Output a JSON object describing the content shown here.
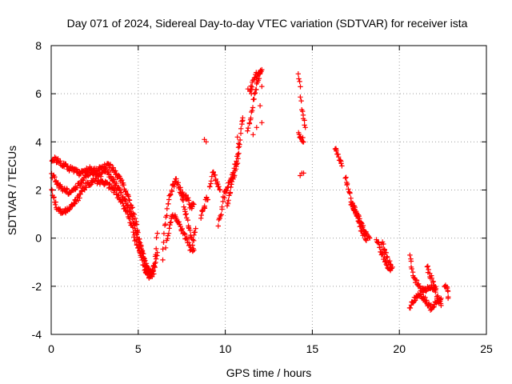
{
  "chart_data": {
    "type": "scatter",
    "title": "Day 071 of 2024, Sidereal Day-to-day VTEC variation (SDTVAR) for receiver ista",
    "xlabel": "GPS time / hours",
    "ylabel": "SDTVAR / TECUs",
    "xlim": [
      0,
      25
    ],
    "ylim": [
      -4,
      8
    ],
    "xticks": [
      "0",
      "5",
      "10",
      "15",
      "20",
      "25"
    ],
    "yticks": [
      "-4",
      "-2",
      "0",
      "2",
      "4",
      "6",
      "8"
    ],
    "grid": true,
    "marker": "+",
    "color": "#ff0000",
    "trace_knots": [
      {
        "name": "track-a",
        "points": [
          [
            0.0,
            3.3
          ],
          [
            0.4,
            3.2
          ],
          [
            1.0,
            2.9
          ],
          [
            1.6,
            2.7
          ],
          [
            2.2,
            2.9
          ],
          [
            2.8,
            2.6
          ],
          [
            3.2,
            3.1
          ],
          [
            3.6,
            2.8
          ],
          [
            4.0,
            2.4
          ],
          [
            4.4,
            1.8
          ],
          [
            4.8,
            0.8
          ],
          [
            5.1,
            -0.2
          ],
          [
            5.4,
            -1.0
          ],
          [
            5.7,
            -1.5
          ],
          [
            5.9,
            -1.2
          ],
          [
            6.0,
            -0.6
          ],
          [
            6.1,
            0.2
          ]
        ]
      },
      {
        "name": "track-b",
        "points": [
          [
            0.0,
            2.7
          ],
          [
            0.4,
            2.2
          ],
          [
            1.0,
            1.9
          ],
          [
            1.6,
            2.2
          ],
          [
            2.0,
            2.6
          ],
          [
            2.5,
            2.8
          ],
          [
            3.0,
            2.9
          ],
          [
            3.5,
            2.5
          ],
          [
            4.0,
            1.9
          ],
          [
            4.5,
            1.2
          ],
          [
            5.0,
            0.0
          ],
          [
            5.3,
            -0.9
          ],
          [
            5.6,
            -1.6
          ],
          [
            5.9,
            -1.4
          ],
          [
            6.1,
            -0.6
          ]
        ]
      },
      {
        "name": "track-c",
        "points": [
          [
            0.0,
            2.1
          ],
          [
            0.3,
            1.3
          ],
          [
            0.6,
            1.0
          ],
          [
            1.0,
            1.2
          ],
          [
            1.5,
            1.6
          ],
          [
            2.0,
            2.2
          ],
          [
            2.5,
            2.4
          ],
          [
            3.0,
            2.3
          ],
          [
            3.5,
            2.1
          ],
          [
            4.0,
            1.6
          ],
          [
            4.5,
            0.8
          ],
          [
            5.0,
            -0.5
          ],
          [
            5.4,
            -1.3
          ],
          [
            5.8,
            -1.6
          ]
        ]
      },
      {
        "name": "track-d",
        "points": [
          [
            6.4,
            -0.8
          ],
          [
            6.5,
            0.3
          ],
          [
            6.7,
            1.4
          ],
          [
            6.9,
            2.0
          ],
          [
            7.2,
            2.4
          ],
          [
            7.5,
            1.8
          ],
          [
            7.8,
            0.8
          ],
          [
            8.1,
            -0.2
          ],
          [
            8.3,
            0.4
          ]
        ]
      },
      {
        "name": "track-e",
        "points": [
          [
            6.6,
            -0.3
          ],
          [
            6.8,
            0.5
          ],
          [
            7.0,
            1.0
          ],
          [
            7.3,
            0.7
          ],
          [
            7.6,
            0.2
          ],
          [
            8.0,
            -0.4
          ],
          [
            8.2,
            -0.5
          ]
        ]
      },
      {
        "name": "track-f",
        "points": [
          [
            7.4,
            1.9
          ],
          [
            7.8,
            1.7
          ],
          [
            8.0,
            1.3
          ],
          [
            8.2,
            1.4
          ]
        ]
      },
      {
        "name": "track-g",
        "points": [
          [
            8.6,
            0.9
          ],
          [
            8.8,
            1.3
          ],
          [
            8.9,
            1.7
          ],
          [
            9.0,
            1.6
          ]
        ]
      },
      {
        "name": "track-h",
        "points": [
          [
            9.1,
            2.1
          ],
          [
            9.3,
            2.8
          ],
          [
            9.5,
            2.3
          ],
          [
            9.7,
            2.0
          ]
        ]
      },
      {
        "name": "track-i",
        "points": [
          [
            9.6,
            0.6
          ],
          [
            9.8,
            1.1
          ],
          [
            9.9,
            1.7
          ],
          [
            10.2,
            2.2
          ],
          [
            10.5,
            2.8
          ],
          [
            10.7,
            3.5
          ],
          [
            10.9,
            4.5
          ],
          [
            11.0,
            4.9
          ]
        ]
      },
      {
        "name": "track-j",
        "points": [
          [
            10.1,
            1.4
          ],
          [
            10.3,
            1.9
          ],
          [
            10.5,
            2.6
          ],
          [
            10.7,
            3.2
          ],
          [
            10.8,
            3.8
          ]
        ]
      },
      {
        "name": "track-k",
        "points": [
          [
            11.3,
            4.4
          ],
          [
            11.5,
            5.2
          ],
          [
            11.6,
            5.7
          ],
          [
            11.8,
            6.4
          ],
          [
            12.0,
            6.9
          ],
          [
            12.1,
            7.0
          ]
        ]
      },
      {
        "name": "track-l",
        "points": [
          [
            11.4,
            6.0
          ],
          [
            11.6,
            6.5
          ],
          [
            11.8,
            6.8
          ],
          [
            12.0,
            6.9
          ]
        ]
      },
      {
        "name": "track-m",
        "points": [
          [
            14.2,
            6.9
          ],
          [
            14.3,
            6.2
          ],
          [
            14.4,
            5.3
          ],
          [
            14.5,
            5.0
          ],
          [
            14.6,
            4.6
          ]
        ]
      },
      {
        "name": "track-n",
        "points": [
          [
            14.2,
            4.3
          ],
          [
            14.4,
            4.1
          ],
          [
            14.5,
            4.0
          ]
        ]
      },
      {
        "name": "track-o",
        "points": [
          [
            16.3,
            3.7
          ],
          [
            16.5,
            3.4
          ],
          [
            16.7,
            3.0
          ]
        ]
      },
      {
        "name": "track-p",
        "points": [
          [
            16.9,
            2.6
          ],
          [
            17.1,
            2.0
          ],
          [
            17.3,
            1.4
          ],
          [
            17.5,
            1.0
          ],
          [
            17.7,
            0.6
          ],
          [
            17.9,
            0.2
          ],
          [
            18.1,
            -0.1
          ]
        ]
      },
      {
        "name": "track-q",
        "points": [
          [
            17.2,
            1.5
          ],
          [
            17.5,
            1.1
          ],
          [
            17.8,
            0.6
          ],
          [
            18.1,
            0.2
          ],
          [
            18.3,
            0.0
          ]
        ]
      },
      {
        "name": "track-r",
        "points": [
          [
            18.7,
            -0.1
          ],
          [
            18.9,
            -0.4
          ],
          [
            19.1,
            -0.8
          ],
          [
            19.3,
            -1.1
          ],
          [
            19.5,
            -1.3
          ]
        ]
      },
      {
        "name": "track-s",
        "points": [
          [
            19.0,
            -0.2
          ],
          [
            19.2,
            -0.6
          ],
          [
            19.4,
            -1.0
          ],
          [
            19.6,
            -1.2
          ]
        ]
      },
      {
        "name": "track-t",
        "points": [
          [
            20.6,
            -0.7
          ],
          [
            20.7,
            -1.2
          ],
          [
            20.9,
            -1.7
          ],
          [
            21.1,
            -2.0
          ],
          [
            21.4,
            -2.2
          ],
          [
            21.8,
            -2.0
          ],
          [
            22.1,
            -2.1
          ]
        ]
      },
      {
        "name": "track-u",
        "points": [
          [
            20.6,
            -2.9
          ],
          [
            20.9,
            -2.5
          ],
          [
            21.2,
            -2.3
          ],
          [
            21.5,
            -2.6
          ],
          [
            21.8,
            -2.9
          ],
          [
            22.1,
            -2.7
          ],
          [
            22.4,
            -2.5
          ]
        ]
      },
      {
        "name": "track-v",
        "points": [
          [
            21.6,
            -1.2
          ],
          [
            21.8,
            -1.6
          ],
          [
            22.0,
            -2.0
          ],
          [
            22.2,
            -2.5
          ],
          [
            22.4,
            -2.8
          ]
        ]
      },
      {
        "name": "track-w",
        "points": [
          [
            22.6,
            -2.0
          ],
          [
            22.8,
            -2.1
          ],
          [
            22.8,
            -2.5
          ]
        ]
      }
    ],
    "isolated_points": [
      [
        8.8,
        4.1
      ],
      [
        8.9,
        4.0
      ],
      [
        10.7,
        4.2
      ],
      [
        11.0,
        5.0
      ],
      [
        11.6,
        4.3
      ],
      [
        11.8,
        4.6
      ],
      [
        12.1,
        4.8
      ],
      [
        12.0,
        5.5
      ],
      [
        11.3,
        6.2
      ],
      [
        12.1,
        6.3
      ],
      [
        11.5,
        6.0
      ],
      [
        14.4,
        2.7
      ],
      [
        14.5,
        2.7
      ],
      [
        14.3,
        2.6
      ]
    ]
  }
}
